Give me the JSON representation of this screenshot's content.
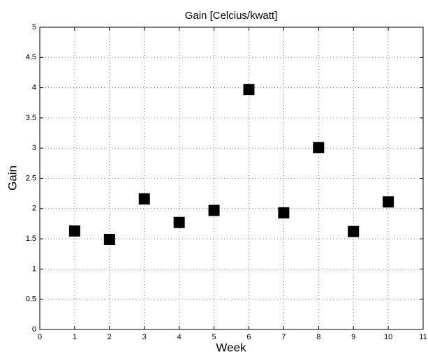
{
  "chart_data": {
    "type": "scatter",
    "title": "Gain [Celcius/kwatt]",
    "x_label": "Week",
    "y_label": "Gain",
    "series": [
      {
        "x": [
          1,
          2,
          3,
          4,
          5,
          6,
          7,
          8,
          9,
          10
        ],
        "values": [
          1.63,
          1.49,
          2.16,
          1.77,
          1.97,
          3.97,
          1.93,
          3.01,
          1.62,
          2.11
        ],
        "color": "#000000",
        "marker": "square"
      }
    ],
    "xlim": [
      0,
      11
    ],
    "xticks": [
      0,
      1,
      2,
      3,
      4,
      5,
      6,
      7,
      8,
      9,
      10,
      11
    ],
    "ylim": [
      0,
      5
    ],
    "yticks": [
      0,
      0.5,
      1,
      1.5,
      2,
      2.5,
      3,
      3.5,
      4,
      4.5,
      5
    ],
    "grid": true
  }
}
